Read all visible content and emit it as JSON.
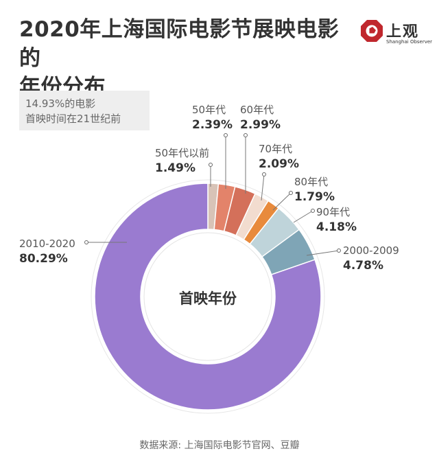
{
  "header": {
    "title_line1": "2020年上海国际电影节展映电影的",
    "title_line2": "年份分布"
  },
  "logo": {
    "cn": "上观",
    "en": "Shanghai Observer",
    "color": "#c0272d"
  },
  "note": {
    "line1": "14.93%的电影",
    "line2": "首映时间在21世纪前"
  },
  "chart_data": {
    "type": "pie",
    "center_label": "首映年份",
    "slices": [
      {
        "category": "50年代以前",
        "value": 1.49,
        "label": "1.49%",
        "color": "#d8c3b7"
      },
      {
        "category": "50年代",
        "value": 2.39,
        "label": "2.39%",
        "color": "#e3836a"
      },
      {
        "category": "60年代",
        "value": 2.99,
        "label": "2.99%",
        "color": "#d4705a"
      },
      {
        "category": "70年代",
        "value": 2.09,
        "label": "2.09%",
        "color": "#f2dccf"
      },
      {
        "category": "80年代",
        "value": 1.79,
        "label": "1.79%",
        "color": "#e88a3c"
      },
      {
        "category": "90年代",
        "value": 4.18,
        "label": "4.18%",
        "color": "#bfd4da"
      },
      {
        "category": "2000-2009",
        "value": 4.78,
        "label": "4.78%",
        "color": "#7fa5b6"
      },
      {
        "category": "2010-2020",
        "value": 80.29,
        "label": "80.29%",
        "color": "#9a7bd0"
      }
    ]
  },
  "footer": {
    "source": "数据来源: 上海国际电影节官网、豆瓣"
  }
}
